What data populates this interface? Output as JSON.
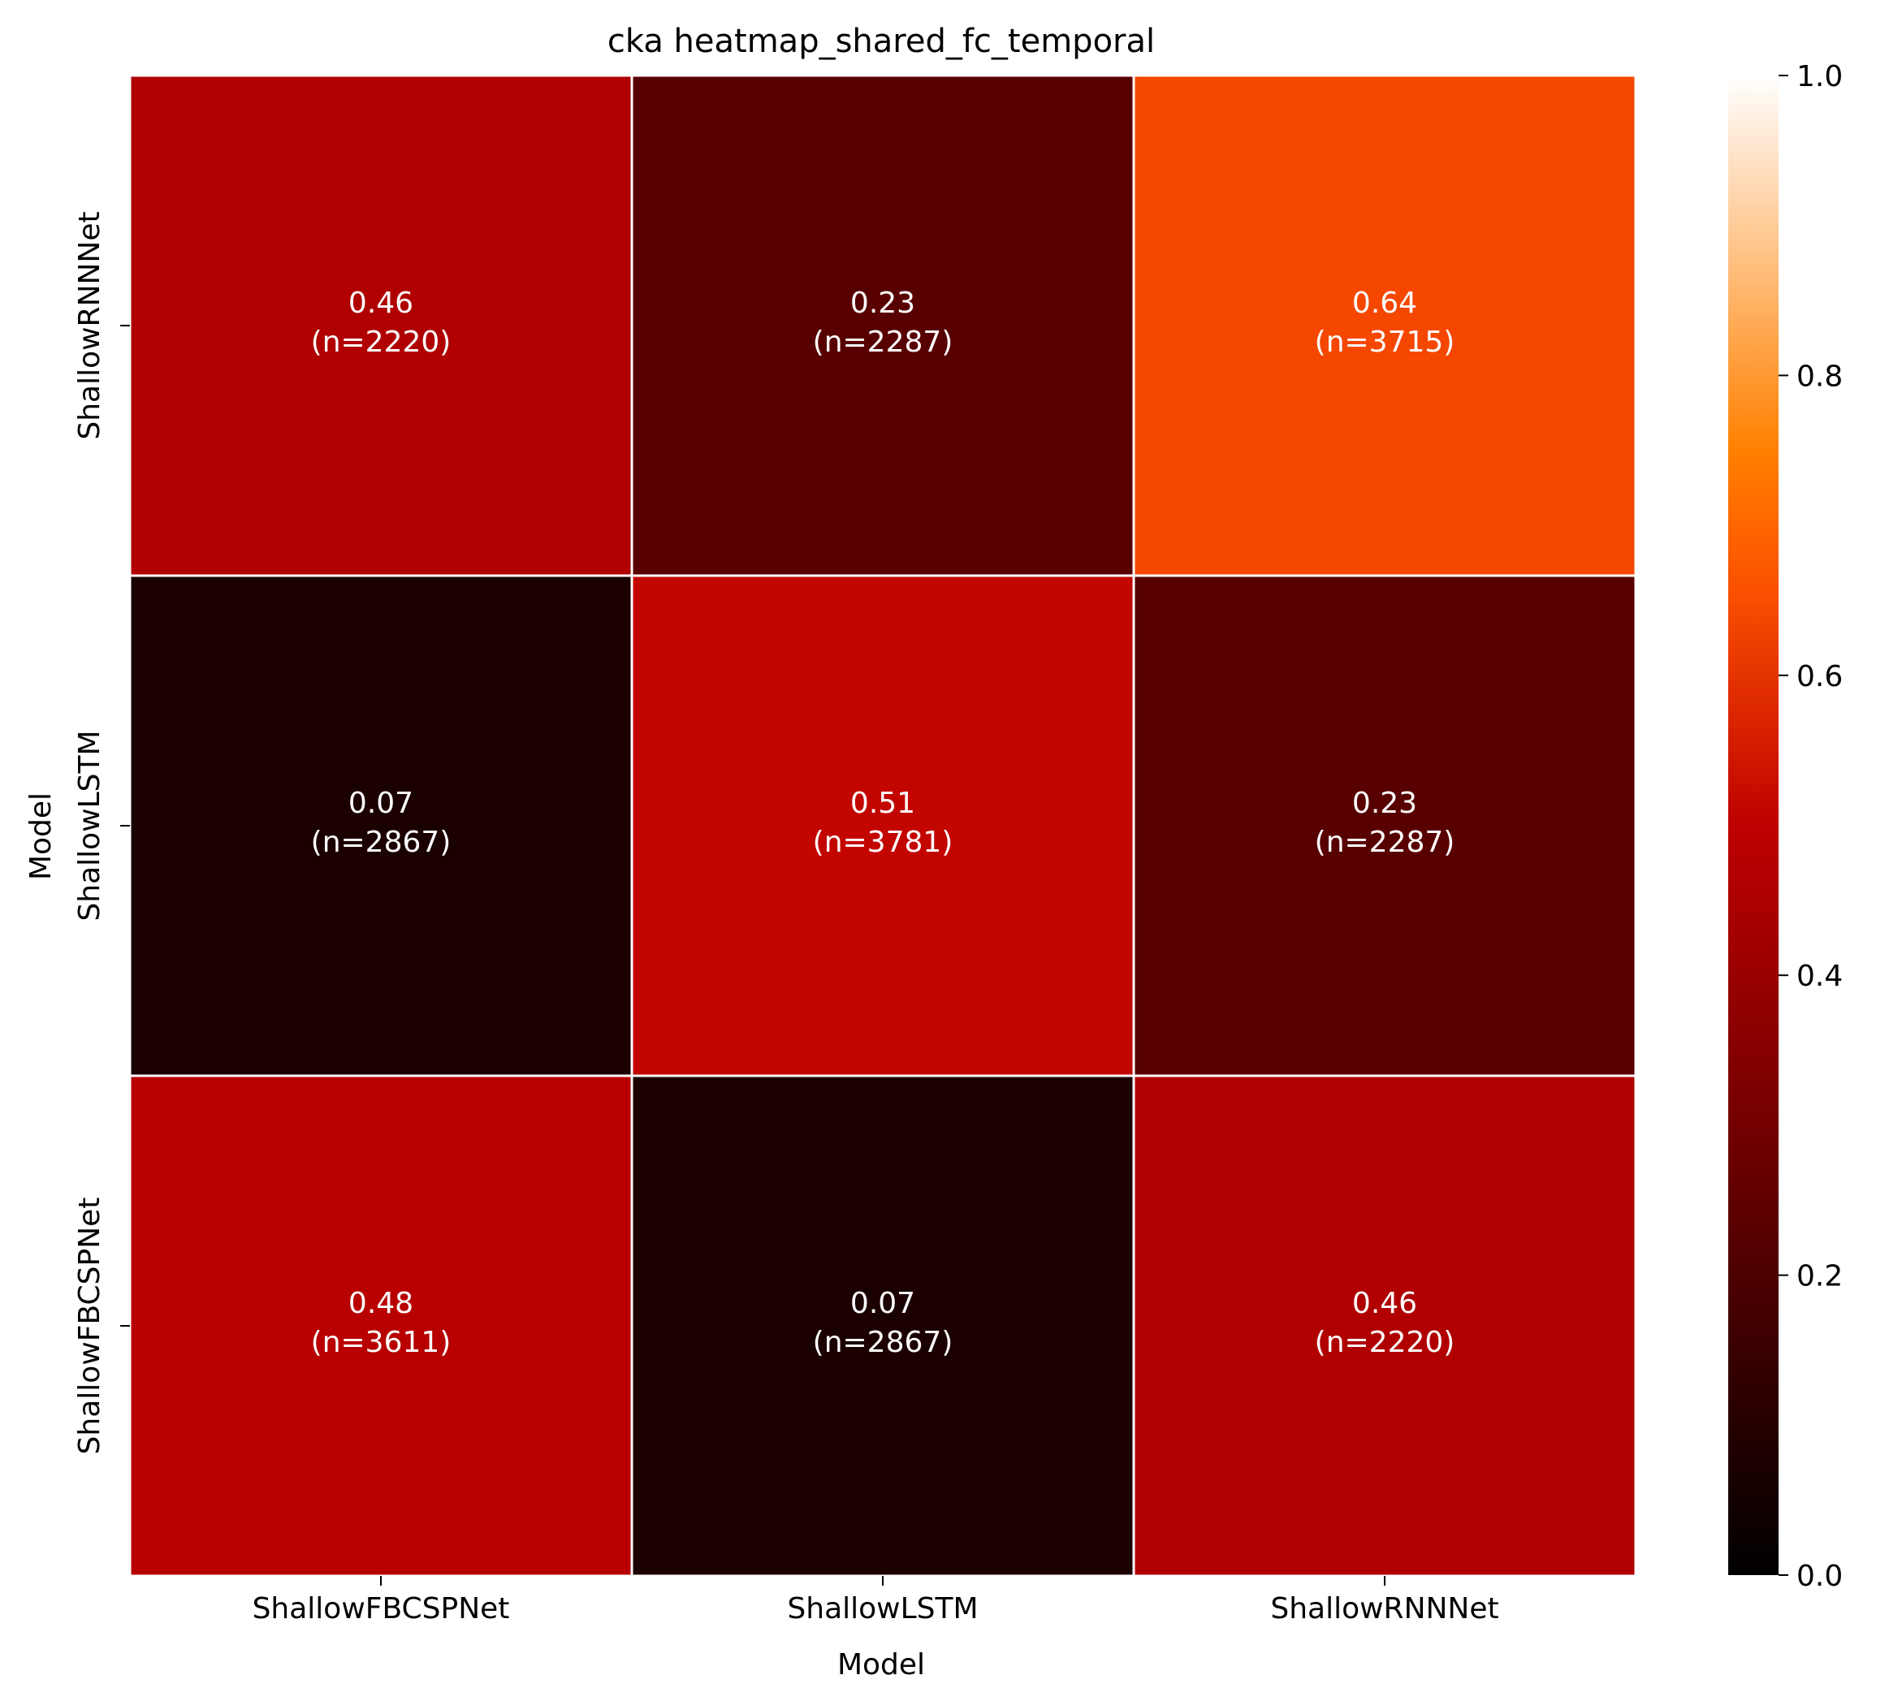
{
  "chart_data": {
    "type": "heatmap",
    "title": "cka heatmap_shared_fc_temporal",
    "xlabel": "Model",
    "ylabel": "Model",
    "x_categories": [
      "ShallowFBCSPNet",
      "ShallowLSTM",
      "ShallowRNNNet"
    ],
    "y_categories": [
      "ShallowRNNNet",
      "ShallowLSTM",
      "ShallowFBCSPNet"
    ],
    "values": [
      [
        0.46,
        0.23,
        0.64
      ],
      [
        0.07,
        0.51,
        0.23
      ],
      [
        0.48,
        0.07,
        0.46
      ]
    ],
    "counts": [
      [
        2220,
        2287,
        3715
      ],
      [
        2867,
        3781,
        2287
      ],
      [
        3611,
        2867,
        2220
      ]
    ],
    "cell_labels": [
      [
        {
          "value": "0.46",
          "count": "(n=2220)"
        },
        {
          "value": "0.23",
          "count": "(n=2287)"
        },
        {
          "value": "0.64",
          "count": "(n=3715)"
        }
      ],
      [
        {
          "value": "0.07",
          "count": "(n=2867)"
        },
        {
          "value": "0.51",
          "count": "(n=3781)"
        },
        {
          "value": "0.23",
          "count": "(n=2287)"
        }
      ],
      [
        {
          "value": "0.48",
          "count": "(n=3611)"
        },
        {
          "value": "0.07",
          "count": "(n=2867)"
        },
        {
          "value": "0.46",
          "count": "(n=2220)"
        }
      ]
    ],
    "colorbar": {
      "colormap": "gist_heat",
      "range": [
        0.0,
        1.0
      ],
      "ticks": [
        "0.0",
        "0.2",
        "0.4",
        "0.6",
        "0.8",
        "1.0"
      ]
    },
    "grid": false,
    "legend": "colorbar-right"
  }
}
